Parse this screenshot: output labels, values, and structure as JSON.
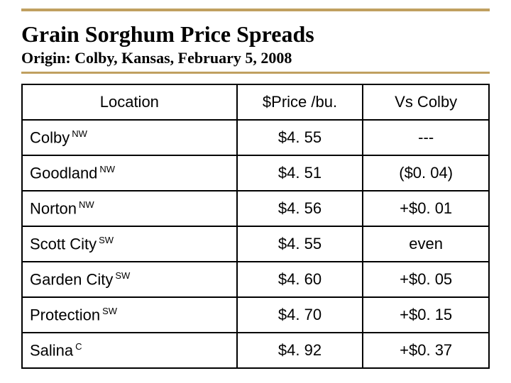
{
  "title": "Grain Sorghum Price Spreads",
  "subtitle": "Origin: Colby, Kansas, February 5, 2008",
  "accent_color": "#c0a060",
  "table": {
    "columns": [
      "Location",
      "$Price /bu.",
      "Vs Colby"
    ],
    "rows": [
      {
        "location": "Colby",
        "region": "NW",
        "price": "$4. 55",
        "vs": "---"
      },
      {
        "location": "Goodland",
        "region": "NW",
        "price": "$4. 51",
        "vs": "($0. 04)"
      },
      {
        "location": "Norton",
        "region": "NW",
        "price": "$4. 56",
        "vs": "+$0. 01"
      },
      {
        "location": "Scott City",
        "region": "SW",
        "price": "$4. 55",
        "vs": "even"
      },
      {
        "location": "Garden City",
        "region": "SW",
        "price": "$4. 60",
        "vs": "+$0. 05"
      },
      {
        "location": "Protection",
        "region": "SW",
        "price": "$4. 70",
        "vs": "+$0. 15"
      },
      {
        "location": "Salina",
        "region": "C",
        "price": "$4. 92",
        "vs": "+$0. 37"
      }
    ]
  }
}
